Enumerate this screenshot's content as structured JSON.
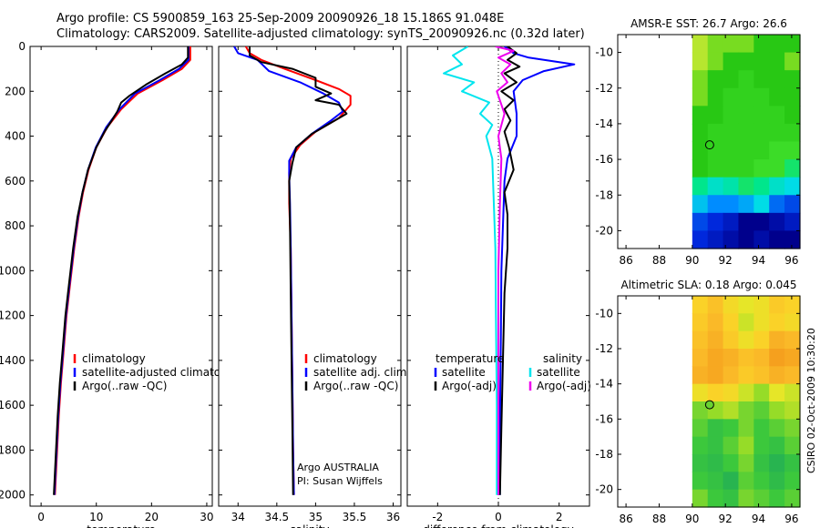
{
  "title_line1": "Argo profile: CS 5900859_163 25-Sep-2009 20090926_18 15.186S 91.048E",
  "title_line2": "Climatology: CARS2009. Satellite-adjusted climatology: synTS_20090926.nc (0.32d later)",
  "timestamp": "CSIRO 02-Oct-2009 10:30:20",
  "colors": {
    "climatology": "#ff0000",
    "satellite": "#0000ff",
    "argo": "#000000",
    "satellite_salinity_diff": "#00e5ee",
    "argo_salinity_diff": "#ee00ee",
    "zero_line": "#000000"
  },
  "chart_data": [
    {
      "id": "temperature-panel",
      "type": "line",
      "xlabel": "temperature",
      "ylabel": "",
      "xlim": [
        -2,
        31
      ],
      "ylim": [
        0,
        2050
      ],
      "xticks": [
        0,
        10,
        20,
        30
      ],
      "yticks": [
        0,
        200,
        400,
        600,
        800,
        1000,
        1200,
        1400,
        1600,
        1800,
        2000
      ],
      "y_reversed": true,
      "legend": [
        "climatology",
        "satellite-adjusted climatolog",
        "Argo(..raw -QC)"
      ],
      "series": [
        {
          "name": "climatology",
          "color": "#ff0000",
          "x": [
            27.0,
            27.0,
            25.5,
            22.0,
            17.5,
            14.5,
            12.0,
            10.0,
            8.6,
            7.6,
            6.8,
            6.0,
            5.3,
            4.6,
            4.1,
            3.6,
            3.2,
            2.8,
            2.5
          ],
          "y": [
            0,
            60,
            100,
            150,
            210,
            280,
            360,
            450,
            550,
            650,
            760,
            900,
            1050,
            1200,
            1350,
            1500,
            1650,
            1850,
            2000
          ]
        },
        {
          "name": "satellite-adjusted climatology",
          "color": "#0000ff",
          "x": [
            26.7,
            26.7,
            25.0,
            21.5,
            17.0,
            14.2,
            11.8,
            9.9,
            8.5,
            7.5,
            6.7,
            5.9,
            5.2,
            4.5,
            4.0,
            3.5,
            3.1,
            2.7,
            2.4
          ],
          "y": [
            0,
            60,
            100,
            150,
            210,
            280,
            360,
            450,
            550,
            650,
            760,
            900,
            1050,
            1200,
            1350,
            1500,
            1650,
            1850,
            2000
          ]
        },
        {
          "name": "Argo(..raw -QC)",
          "color": "#000000",
          "x": [
            26.6,
            26.6,
            25.5,
            22.5,
            19.0,
            16.0,
            14.5,
            13.8,
            12.8,
            11.5,
            10.0,
            8.5,
            7.5,
            6.6,
            5.8,
            5.1,
            4.4,
            3.9,
            3.4,
            3.0,
            2.6,
            2.3
          ],
          "y": [
            0,
            50,
            80,
            120,
            170,
            220,
            250,
            290,
            330,
            380,
            450,
            550,
            650,
            760,
            900,
            1050,
            1200,
            1350,
            1500,
            1650,
            1850,
            2000
          ]
        }
      ]
    },
    {
      "id": "salinity-panel",
      "type": "line",
      "xlabel": "salinity",
      "ylabel": "",
      "xlim": [
        33.75,
        36.1
      ],
      "ylim": [
        0,
        2050
      ],
      "xticks": [
        34,
        34.5,
        35,
        35.5,
        36
      ],
      "yticks": [
        0,
        200,
        400,
        600,
        800,
        1000,
        1200,
        1400,
        1600,
        1800,
        2000
      ],
      "y_reversed": true,
      "legend": [
        "climatology",
        "satellite adj. clim.",
        "Argo(..raw -QC)"
      ],
      "annotations": [
        "Argo AUSTRALIA",
        "PI: Susan Wijffels"
      ],
      "series": [
        {
          "name": "climatology",
          "color": "#ff0000",
          "x": [
            34.1,
            34.15,
            34.3,
            34.6,
            35.0,
            35.3,
            35.45,
            35.45,
            35.3,
            35.0,
            34.8,
            34.68,
            34.66,
            34.66,
            34.68,
            34.69,
            34.7,
            34.71,
            34.72
          ],
          "y": [
            0,
            30,
            60,
            100,
            150,
            190,
            220,
            260,
            320,
            380,
            440,
            500,
            560,
            700,
            900,
            1200,
            1500,
            1800,
            2000
          ]
        },
        {
          "name": "satellite adj. clim.",
          "color": "#0000ff",
          "x": [
            33.95,
            34.0,
            34.25,
            34.4,
            34.8,
            35.1,
            35.3,
            35.35,
            35.2,
            34.95,
            34.75,
            34.66,
            34.66,
            34.67,
            34.68,
            34.69,
            34.7,
            34.71,
            34.72
          ],
          "y": [
            0,
            30,
            60,
            110,
            160,
            210,
            250,
            290,
            330,
            390,
            450,
            510,
            570,
            700,
            900,
            1200,
            1500,
            1800,
            2000
          ]
        },
        {
          "name": "Argo(..raw -QC)",
          "color": "#000000",
          "x": [
            34.15,
            34.15,
            34.3,
            34.7,
            35.0,
            35.0,
            35.2,
            35.0,
            35.3,
            35.4,
            35.2,
            34.95,
            34.75,
            34.7,
            34.66,
            34.67,
            34.68,
            34.69,
            34.7,
            34.71
          ],
          "y": [
            0,
            40,
            70,
            100,
            140,
            180,
            210,
            240,
            260,
            300,
            340,
            390,
            450,
            520,
            600,
            800,
            1100,
            1400,
            1700,
            2000
          ]
        }
      ]
    },
    {
      "id": "difference-panel",
      "type": "line",
      "xlabel": "difference from climatology",
      "ylabel": "",
      "xlim": [
        -3.0,
        3.0
      ],
      "ylim": [
        0,
        2050
      ],
      "xticks": [
        -2,
        0,
        2
      ],
      "yticks": [
        0,
        200,
        400,
        600,
        800,
        1000,
        1200,
        1400,
        1600,
        1800,
        2000
      ],
      "y_reversed": true,
      "legend": [
        "temperature",
        "satellite",
        "Argo(-adj)",
        "salinity",
        "satellite",
        "Argo(-adj)"
      ],
      "series": [
        {
          "name": "temperature satellite",
          "color": "#0000ff",
          "x": [
            0.2,
            0.5,
            1.0,
            2.5,
            1.5,
            0.8,
            0.5,
            0.6,
            0.6,
            0.3,
            0.2,
            0.15,
            0.1,
            0.08,
            0.05,
            0.05
          ],
          "y": [
            0,
            30,
            50,
            80,
            110,
            150,
            200,
            300,
            400,
            500,
            600,
            800,
            1000,
            1300,
            1700,
            2000
          ]
        },
        {
          "name": "temperature Argo(-adj)",
          "color": "#000000",
          "x": [
            0.3,
            0.6,
            0.3,
            0.7,
            0.2,
            0.6,
            0.1,
            0.5,
            0.2,
            0.4,
            0.2,
            0.35,
            0.5,
            0.2,
            0.3,
            0.3,
            0.2,
            0.15,
            0.1,
            0.05
          ],
          "y": [
            0,
            30,
            60,
            90,
            120,
            160,
            200,
            240,
            280,
            330,
            380,
            450,
            550,
            650,
            750,
            900,
            1100,
            1400,
            1700,
            2000
          ]
        },
        {
          "name": "salinity satellite",
          "color": "#00e5ee",
          "x": [
            -1.0,
            -1.5,
            -1.2,
            -1.8,
            -0.8,
            -1.2,
            -0.3,
            -0.6,
            -0.2,
            -0.4,
            -0.2,
            -0.15,
            -0.1,
            -0.08,
            -0.05,
            -0.05
          ],
          "y": [
            0,
            40,
            80,
            120,
            160,
            200,
            250,
            300,
            350,
            400,
            500,
            700,
            900,
            1200,
            1600,
            2000
          ]
        },
        {
          "name": "salinity Argo(-adj)",
          "color": "#ee00ee",
          "x": [
            -0.1,
            0.5,
            0.0,
            0.4,
            0.1,
            0.3,
            -0.05,
            0.2,
            0.0,
            0.1,
            0.05,
            0.0,
            0.0,
            0.0
          ],
          "y": [
            0,
            20,
            50,
            80,
            120,
            160,
            200,
            300,
            400,
            500,
            700,
            1000,
            1500,
            2000
          ]
        }
      ]
    },
    {
      "id": "sst-map",
      "type": "heatmap",
      "title": "AMSR-E SST: 26.7 Argo: 26.6",
      "xlim": [
        85.5,
        96.5
      ],
      "ylim": [
        -21,
        -9
      ],
      "xticks": [
        86,
        88,
        90,
        92,
        94,
        96
      ],
      "yticks": [
        -10,
        -12,
        -14,
        -16,
        -18,
        -20
      ],
      "data_lon_range": [
        90,
        96.5
      ],
      "marker": {
        "lon": 91.048,
        "lat": -15.186,
        "value": 26.6,
        "color": "#33cc00"
      },
      "rows_north_to_south": [
        [
          26.9,
          26.8,
          26.8,
          26.8,
          26.7,
          26.7,
          26.7
        ],
        [
          26.9,
          26.8,
          26.7,
          26.7,
          26.7,
          26.7,
          26.8
        ],
        [
          26.8,
          26.7,
          26.7,
          26.6,
          26.7,
          26.7,
          26.7
        ],
        [
          26.8,
          26.7,
          26.6,
          26.6,
          26.6,
          26.7,
          26.7
        ],
        [
          26.7,
          26.7,
          26.6,
          26.6,
          26.6,
          26.6,
          26.7
        ],
        [
          26.7,
          26.6,
          26.6,
          26.6,
          26.6,
          26.6,
          26.6
        ],
        [
          26.7,
          26.6,
          26.6,
          26.6,
          26.6,
          26.5,
          26.5
        ],
        [
          26.7,
          26.6,
          26.6,
          26.6,
          26.5,
          26.5,
          26.3
        ],
        [
          26.2,
          26.0,
          26.1,
          26.3,
          26.2,
          26.0,
          25.9
        ],
        [
          25.8,
          25.6,
          25.6,
          25.7,
          25.9,
          25.5,
          25.4
        ],
        [
          25.4,
          25.3,
          25.2,
          25.0,
          25.0,
          25.1,
          25.2
        ],
        [
          25.3,
          25.2,
          25.1,
          25.0,
          25.1,
          25.0,
          25.0
        ]
      ]
    },
    {
      "id": "sla-map",
      "type": "heatmap",
      "title": "Altimetric SLA: 0.18 Argo: 0.045",
      "xlim": [
        85.5,
        96.5
      ],
      "ylim": [
        -21,
        -9
      ],
      "xticks": [
        86,
        88,
        90,
        92,
        94,
        96
      ],
      "yticks": [
        -10,
        -12,
        -14,
        -16,
        -18,
        -20
      ],
      "data_lon_range": [
        90,
        96.5
      ],
      "marker": {
        "lon": 91.048,
        "lat": -15.186,
        "value": 0.045,
        "color": "#33cc00"
      },
      "rows_north_to_south": [
        [
          0.12,
          0.14,
          0.11,
          0.09,
          0.1,
          0.13,
          0.12
        ],
        [
          0.13,
          0.15,
          0.12,
          0.08,
          0.1,
          0.12,
          0.11
        ],
        [
          0.14,
          0.16,
          0.13,
          0.1,
          0.12,
          0.16,
          0.15
        ],
        [
          0.15,
          0.17,
          0.16,
          0.14,
          0.15,
          0.18,
          0.17
        ],
        [
          0.16,
          0.17,
          0.15,
          0.13,
          0.14,
          0.16,
          0.15
        ],
        [
          0.1,
          0.12,
          0.11,
          0.08,
          0.06,
          0.09,
          0.08
        ],
        [
          0.05,
          0.06,
          0.07,
          0.05,
          0.04,
          0.06,
          0.07
        ],
        [
          0.04,
          0.02,
          0.03,
          0.05,
          0.03,
          0.04,
          0.05
        ],
        [
          0.03,
          0.02,
          0.04,
          0.06,
          0.03,
          0.02,
          0.04
        ],
        [
          0.02,
          0.01,
          0.03,
          0.05,
          0.02,
          0.0,
          0.02
        ],
        [
          0.03,
          0.02,
          0.0,
          0.04,
          0.03,
          0.01,
          0.03
        ],
        [
          0.05,
          0.03,
          0.02,
          0.05,
          0.04,
          0.03,
          0.04
        ]
      ]
    }
  ]
}
